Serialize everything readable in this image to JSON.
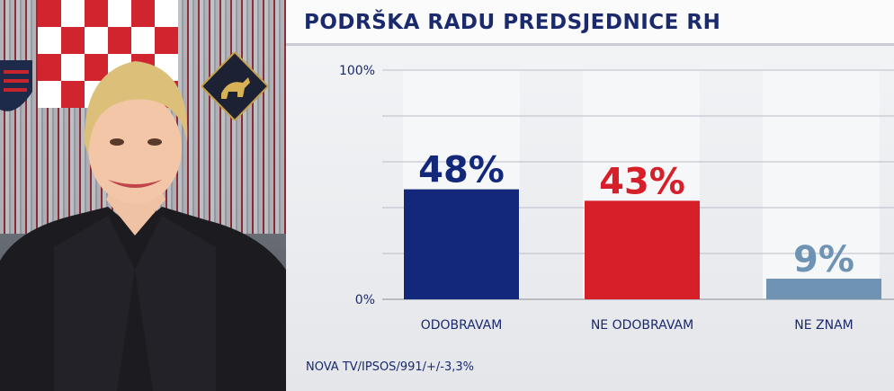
{
  "chart_data": {
    "type": "bar",
    "title": "PODRŠKA RADU PREDSJEDNICE RH",
    "categories": [
      "ODOBRAVAM",
      "NE ODOBRAVAM",
      "NE ZNAM"
    ],
    "values": [
      48,
      43,
      9
    ],
    "value_labels": [
      "48%",
      "43%",
      "9%"
    ],
    "colors": [
      "#13287a",
      "#d71f2a",
      "#6f93b3"
    ],
    "ylim": [
      0,
      100
    ],
    "yticks": [
      "0%",
      "100%"
    ],
    "grid": true,
    "source": "NOVA TV/IPSOS/991/+/-3,3%"
  },
  "photo": {
    "icon": "portrait-photo"
  }
}
